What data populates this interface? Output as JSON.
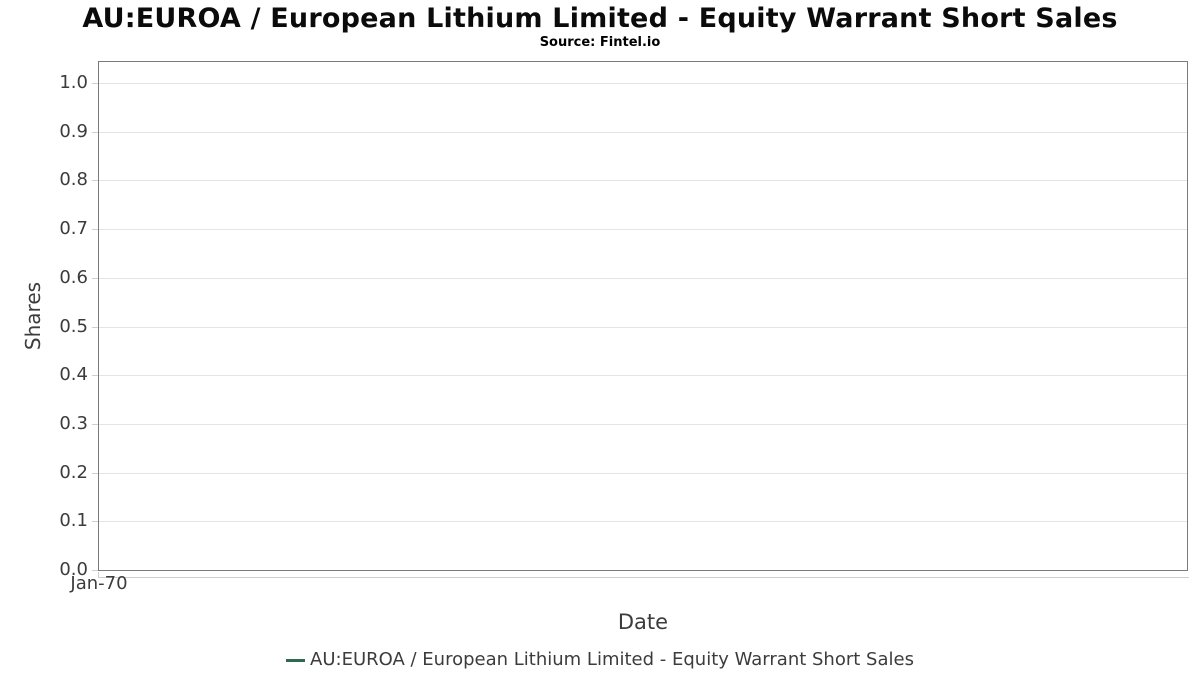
{
  "chart_data": {
    "type": "line",
    "title": "AU:EUROA / European Lithium Limited - Equity Warrant Short Sales",
    "subtitle": "Source: Fintel.io",
    "xlabel": "Date",
    "ylabel": "Shares",
    "xticks": [
      "Jan-70"
    ],
    "yticks": [
      0.0,
      0.1,
      0.2,
      0.3,
      0.4,
      0.5,
      0.6,
      0.7,
      0.8,
      0.9,
      1.0
    ],
    "ylim": [
      0,
      1.05
    ],
    "grid": "horizontal",
    "legend_position": "bottom",
    "series": [
      {
        "name": "AU:EUROA / European Lithium Limited - Equity Warrant Short Sales",
        "color": "#2d6a4e",
        "x": [],
        "values": []
      }
    ]
  }
}
